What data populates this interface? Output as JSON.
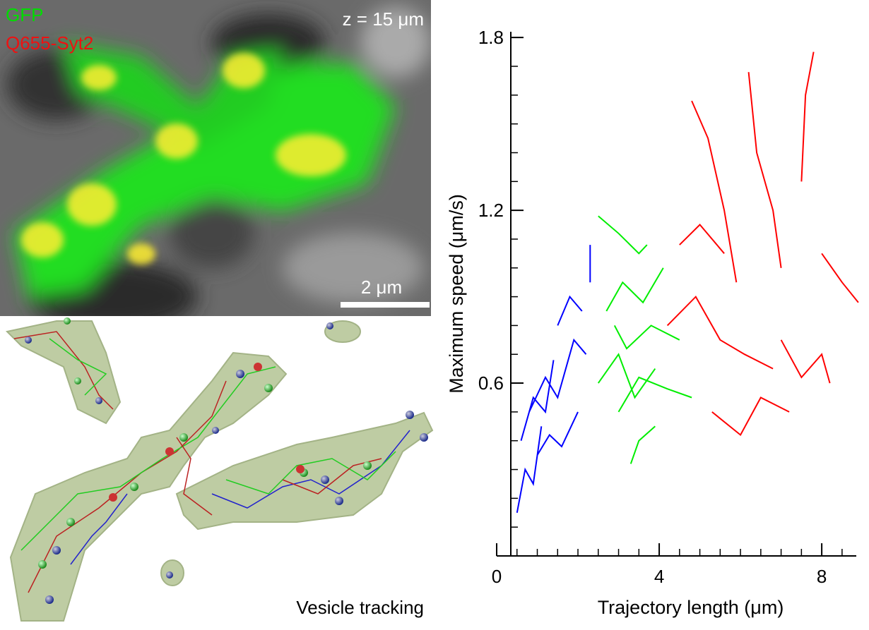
{
  "image_labels": {
    "channel_1": "GFP",
    "channel_2": "Q655-Syt2",
    "depth": "z = 15 μm",
    "scale_bar": "2 μm",
    "tracking_caption": "Vesicle tracking"
  },
  "chart_data": {
    "type": "line",
    "x_label": "Trajectory length (μm)",
    "y_label": "Maximum speed (μm/s)",
    "xlim": [
      0,
      8.85
    ],
    "ylim": [
      0,
      1.82
    ],
    "xticks": [
      0,
      4,
      8
    ],
    "yticks": [
      0.6,
      1.2,
      1.8
    ],
    "xminor_ticks": [
      0.5,
      1,
      1.5,
      2,
      2.5,
      3,
      3.5,
      4.5,
      5,
      5.5,
      6,
      6.5,
      7,
      7.5,
      8.5
    ],
    "yminor_ticks": [
      0.1,
      0.2,
      0.3,
      0.4,
      0.5,
      0.7,
      0.8,
      0.9,
      1.0,
      1.1,
      1.3,
      1.4,
      1.5,
      1.6,
      1.7
    ],
    "series": [
      {
        "color": "#0000ff",
        "x": [
          0.5,
          0.7,
          0.9,
          1.1,
          null,
          0.8,
          1.2,
          1.5,
          1.9,
          2.2,
          null,
          1.0,
          1.3,
          1.6,
          2.0,
          null,
          1.5,
          1.8,
          2.1,
          null,
          0.6,
          0.9,
          1.2,
          1.4,
          null,
          2.3,
          2.3
        ],
        "values": [
          0.15,
          0.3,
          0.25,
          0.45,
          null,
          0.5,
          0.62,
          0.55,
          0.75,
          0.7,
          null,
          0.35,
          0.42,
          0.38,
          0.5,
          null,
          0.8,
          0.9,
          0.85,
          null,
          0.4,
          0.55,
          0.5,
          0.68,
          null,
          0.95,
          1.08
        ]
      },
      {
        "color": "#00ee00",
        "x": [
          2.5,
          3.0,
          3.4,
          3.9,
          null,
          2.7,
          3.1,
          3.6,
          4.1,
          null,
          3.3,
          3.5,
          3.9,
          null,
          2.5,
          3.0,
          3.5,
          3.7,
          null,
          3.0,
          3.5,
          4.2,
          4.8,
          null,
          2.9,
          3.2,
          3.8,
          4.5
        ],
        "values": [
          0.6,
          0.7,
          0.55,
          0.65,
          null,
          0.85,
          0.95,
          0.88,
          1.0,
          null,
          0.32,
          0.4,
          0.45,
          null,
          1.18,
          1.12,
          1.05,
          1.08,
          null,
          0.5,
          0.62,
          0.58,
          0.55,
          null,
          0.8,
          0.72,
          0.8,
          0.75
        ]
      },
      {
        "color": "#ff0000",
        "x": [
          4.8,
          5.2,
          5.6,
          5.9,
          null,
          7.8,
          7.6,
          7.5,
          null,
          6.2,
          6.4,
          6.8,
          7.0,
          null,
          4.2,
          4.9,
          5.5,
          6.1,
          6.8,
          null,
          8.0,
          8.5,
          8.9,
          null,
          4.5,
          5.0,
          5.6,
          null,
          5.3,
          6.0,
          6.5,
          7.2,
          null,
          7.0,
          7.5,
          8.0,
          8.2
        ],
        "values": [
          1.58,
          1.45,
          1.2,
          0.95,
          null,
          1.75,
          1.6,
          1.3,
          null,
          1.68,
          1.4,
          1.2,
          1.0,
          null,
          0.8,
          0.9,
          0.75,
          0.7,
          0.65,
          null,
          1.05,
          0.95,
          0.88,
          null,
          1.08,
          1.15,
          1.05,
          null,
          0.5,
          0.42,
          0.55,
          0.5,
          null,
          0.75,
          0.62,
          0.7,
          0.6
        ]
      }
    ]
  }
}
